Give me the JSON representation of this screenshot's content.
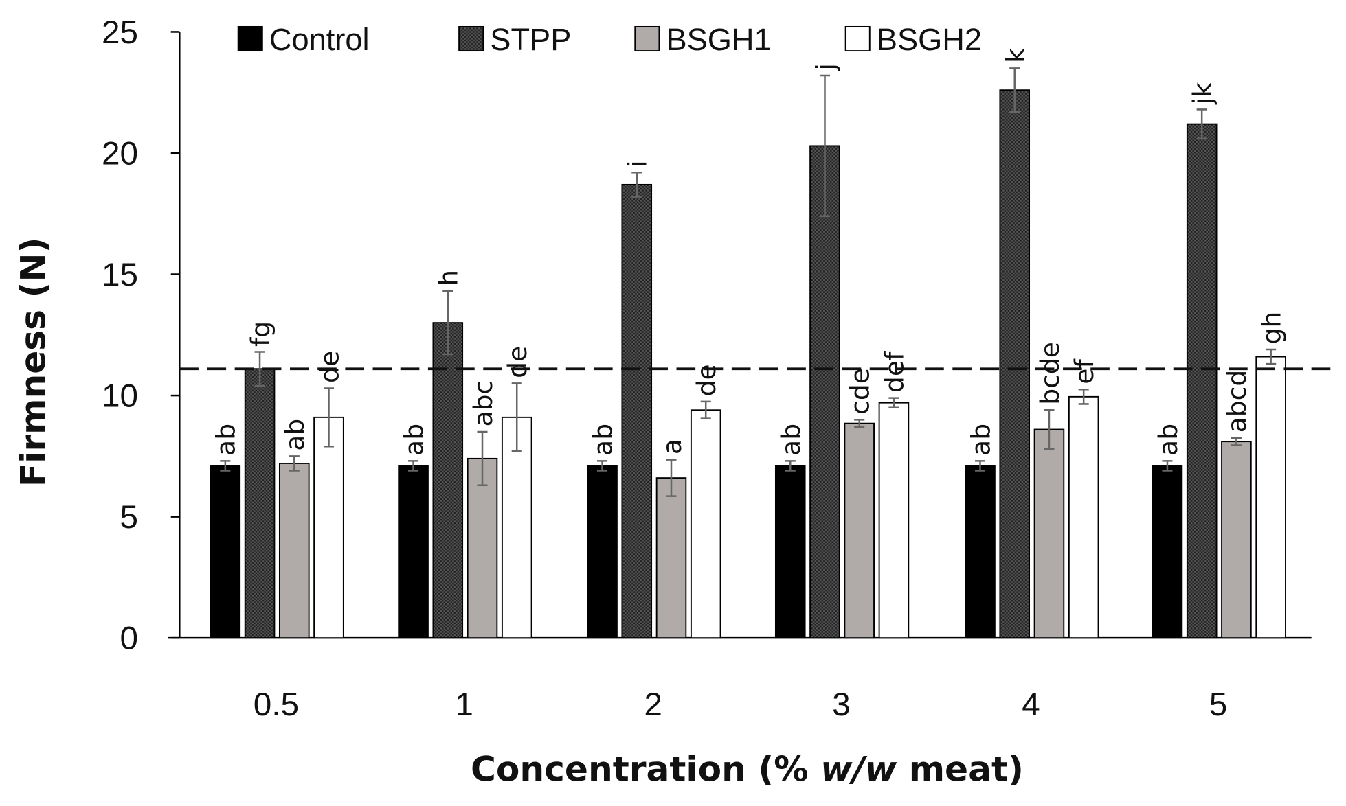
{
  "chart_data": {
    "type": "bar",
    "title": "",
    "xlabel_parts": [
      "Concentration (% ",
      "w/w",
      " meat)"
    ],
    "ylabel": "Firmness (N)",
    "ylim": [
      0,
      25
    ],
    "yticks": [
      "0",
      "5",
      "10",
      "15",
      "20",
      "25"
    ],
    "categories": [
      "0.5",
      "1",
      "2",
      "3",
      "4",
      "5"
    ],
    "reference_line": 11.1,
    "legend_position": "top",
    "series": [
      {
        "name": "Control",
        "color": "#000000",
        "pattern": "solid",
        "values": [
          7.1,
          7.1,
          7.1,
          7.1,
          7.1,
          7.1
        ],
        "errors": [
          0.2,
          0.2,
          0.2,
          0.2,
          0.2,
          0.2
        ],
        "letters": [
          "ab",
          "ab",
          "ab",
          "ab",
          "ab",
          "ab"
        ]
      },
      {
        "name": "STPP",
        "color": "#333333",
        "pattern": "dots",
        "values": [
          11.1,
          13.0,
          18.7,
          20.3,
          22.6,
          21.2
        ],
        "errors": [
          0.7,
          1.3,
          0.5,
          2.9,
          0.9,
          0.6
        ],
        "letters": [
          "fg",
          "h",
          "i",
          "j",
          "k",
          "jk"
        ]
      },
      {
        "name": "BSGH1",
        "color": "#b0aba8",
        "pattern": "solid",
        "values": [
          7.2,
          7.4,
          6.6,
          8.85,
          8.6,
          8.1
        ],
        "errors": [
          0.3,
          1.1,
          0.75,
          0.15,
          0.8,
          0.15
        ],
        "letters": [
          "ab",
          "abc",
          "a",
          "cde",
          "bcde",
          "abcd"
        ]
      },
      {
        "name": "BSGH2",
        "color": "#ffffff",
        "pattern": "solid",
        "values": [
          9.1,
          9.1,
          9.4,
          9.7,
          9.95,
          11.6
        ],
        "errors": [
          1.2,
          1.4,
          0.35,
          0.2,
          0.3,
          0.3
        ],
        "letters": [
          "de",
          "de",
          "de",
          "def",
          "ef",
          "gh"
        ]
      }
    ]
  }
}
